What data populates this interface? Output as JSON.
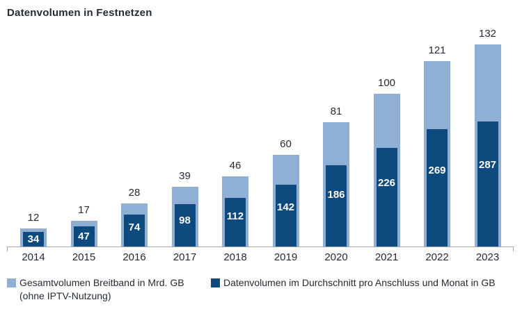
{
  "title": "Datenvolumen in Festnetzen",
  "chart_data": {
    "type": "bar",
    "title": "Datenvolumen in Festnetzen",
    "categories": [
      "2014",
      "2015",
      "2016",
      "2017",
      "2018",
      "2019",
      "2020",
      "2021",
      "2022",
      "2023"
    ],
    "series": [
      {
        "name": "Gesamtvolumen Breitband in Mrd. GB (ohne IPTV-Nutzung)",
        "values": [
          12,
          17,
          28,
          39,
          46,
          60,
          81,
          100,
          121,
          132
        ],
        "color": "#8fafd4",
        "label_color": "#242a36",
        "label_position": "above"
      },
      {
        "name": "Datenvolumen im Durchschnitt pro Anschluss und Monat in GB",
        "values": [
          34,
          47,
          74,
          98,
          112,
          142,
          186,
          226,
          269,
          287
        ],
        "color": "#0e4a7d",
        "label_color": "#ffffff",
        "label_position": "inside"
      }
    ],
    "xlabel": "",
    "ylabel": "",
    "grid": false,
    "y_axis_visible": false,
    "axis_line_color": "#a6a6a6",
    "background": "#ffffff",
    "legend_position": "bottom-left"
  },
  "legend": {
    "items": [
      {
        "line1": "Gesamtvolumen Breitband in Mrd. GB",
        "line2": "(ohne IPTV-Nutzung)",
        "color": "#8fafd4"
      },
      {
        "line1": "Datenvolumen im Durchschnitt pro Anschluss und Monat in GB",
        "line2": "",
        "color": "#0e4a7d"
      }
    ]
  }
}
